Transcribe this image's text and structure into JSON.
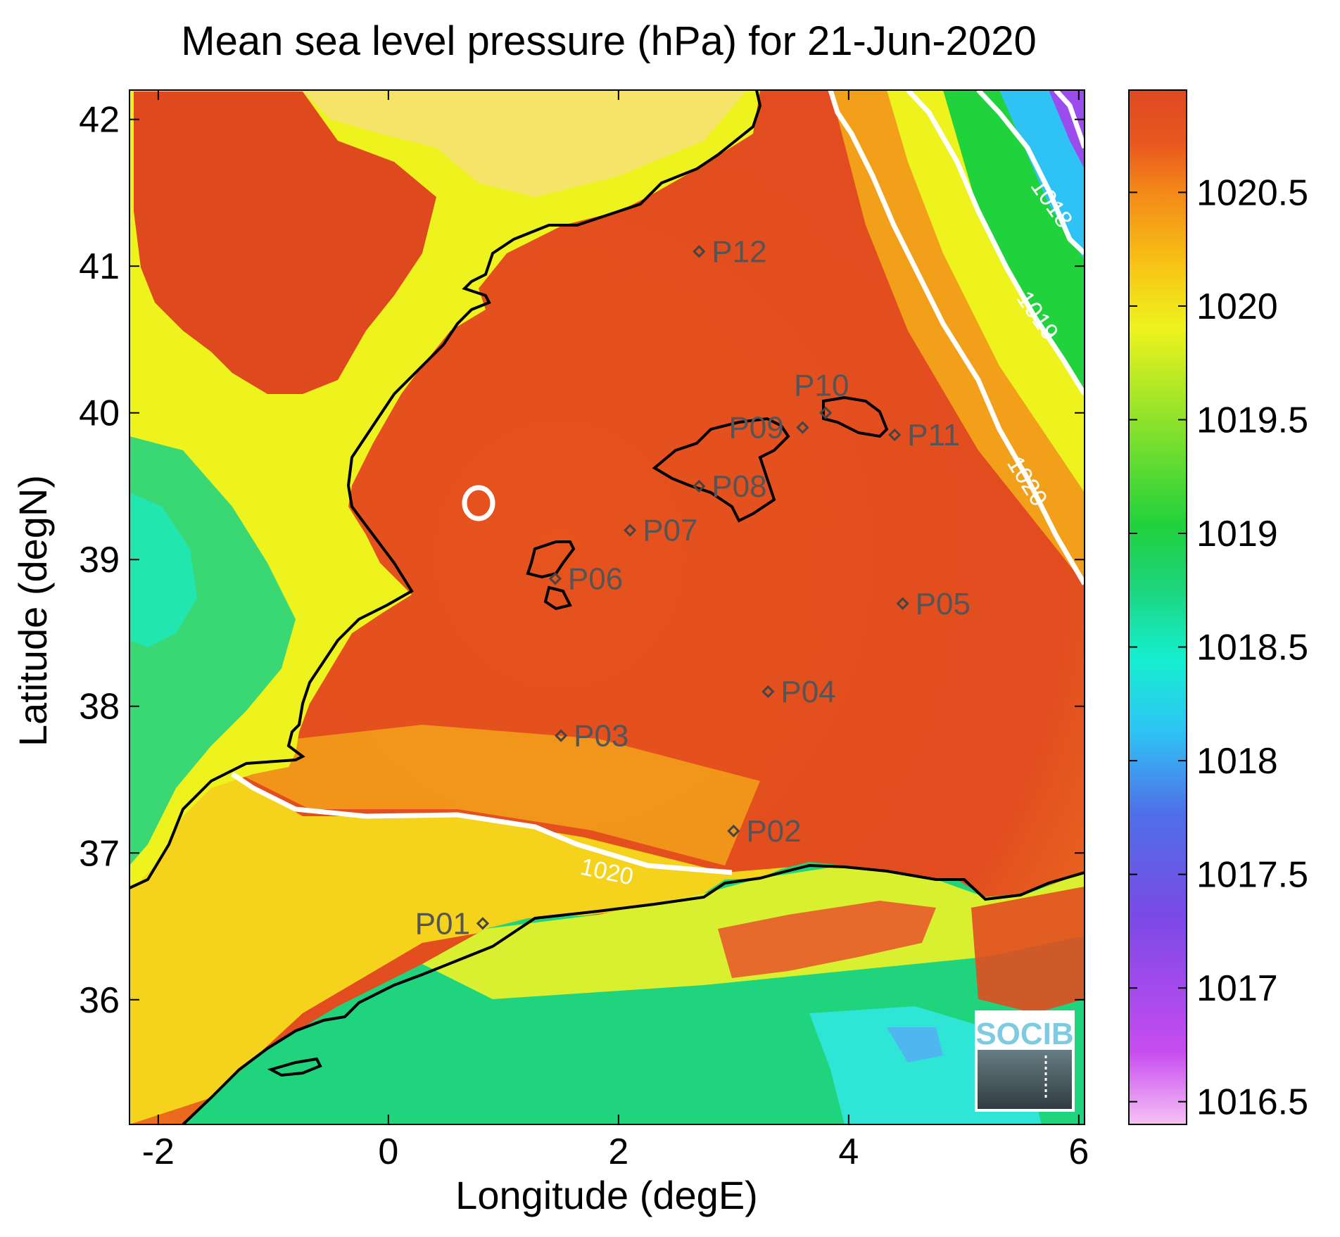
{
  "title": "Mean sea level pressure (hPa) for 21-Jun-2020",
  "x_axis": {
    "label": "Longitude (degE)",
    "ticks": [
      "-2",
      "0",
      "2",
      "4",
      "6"
    ],
    "range": [
      -2.25,
      6.05
    ]
  },
  "y_axis": {
    "label": "Latitude (degN)",
    "ticks": [
      "36",
      "37",
      "38",
      "39",
      "40",
      "41",
      "42"
    ],
    "range": [
      35.15,
      42.2
    ]
  },
  "colorbar": {
    "ticks": [
      "1016.5",
      "1017",
      "1017.5",
      "1018",
      "1018.5",
      "1019",
      "1019.5",
      "1020",
      "1020.5"
    ],
    "range": [
      1016.4,
      1020.95
    ],
    "colors": [
      "#f5c2f2",
      "#c84cf0",
      "#7b49e6",
      "#4f6fe8",
      "#2fc3f5",
      "#15efd0",
      "#1dd47a",
      "#20d23c",
      "#8ee22a",
      "#eef31e",
      "#f8c416",
      "#f48a18",
      "#e8561e",
      "#df4a22"
    ]
  },
  "stations": [
    {
      "name": "P01",
      "lon": 0.82,
      "lat": 36.52
    },
    {
      "name": "P02",
      "lon": 3.0,
      "lat": 37.15
    },
    {
      "name": "P03",
      "lon": 1.5,
      "lat": 37.8
    },
    {
      "name": "P04",
      "lon": 3.3,
      "lat": 38.1
    },
    {
      "name": "P05",
      "lon": 4.47,
      "lat": 38.7
    },
    {
      "name": "P06",
      "lon": 1.45,
      "lat": 38.87
    },
    {
      "name": "P07",
      "lon": 2.1,
      "lat": 39.2
    },
    {
      "name": "P08",
      "lon": 2.7,
      "lat": 39.5
    },
    {
      "name": "P09",
      "lon": 3.6,
      "lat": 39.9
    },
    {
      "name": "P10",
      "lon": 3.8,
      "lat": 40.0
    },
    {
      "name": "P11",
      "lon": 4.4,
      "lat": 39.85
    },
    {
      "name": "P12",
      "lon": 2.7,
      "lat": 41.1
    }
  ],
  "contours": [
    {
      "label": "1020",
      "value": 1020
    },
    {
      "label": "1020",
      "value": 1020
    },
    {
      "label": "1019",
      "value": 1019
    },
    {
      "label": "1018",
      "value": 1018
    }
  ],
  "logo": {
    "text": "SOCIB"
  }
}
